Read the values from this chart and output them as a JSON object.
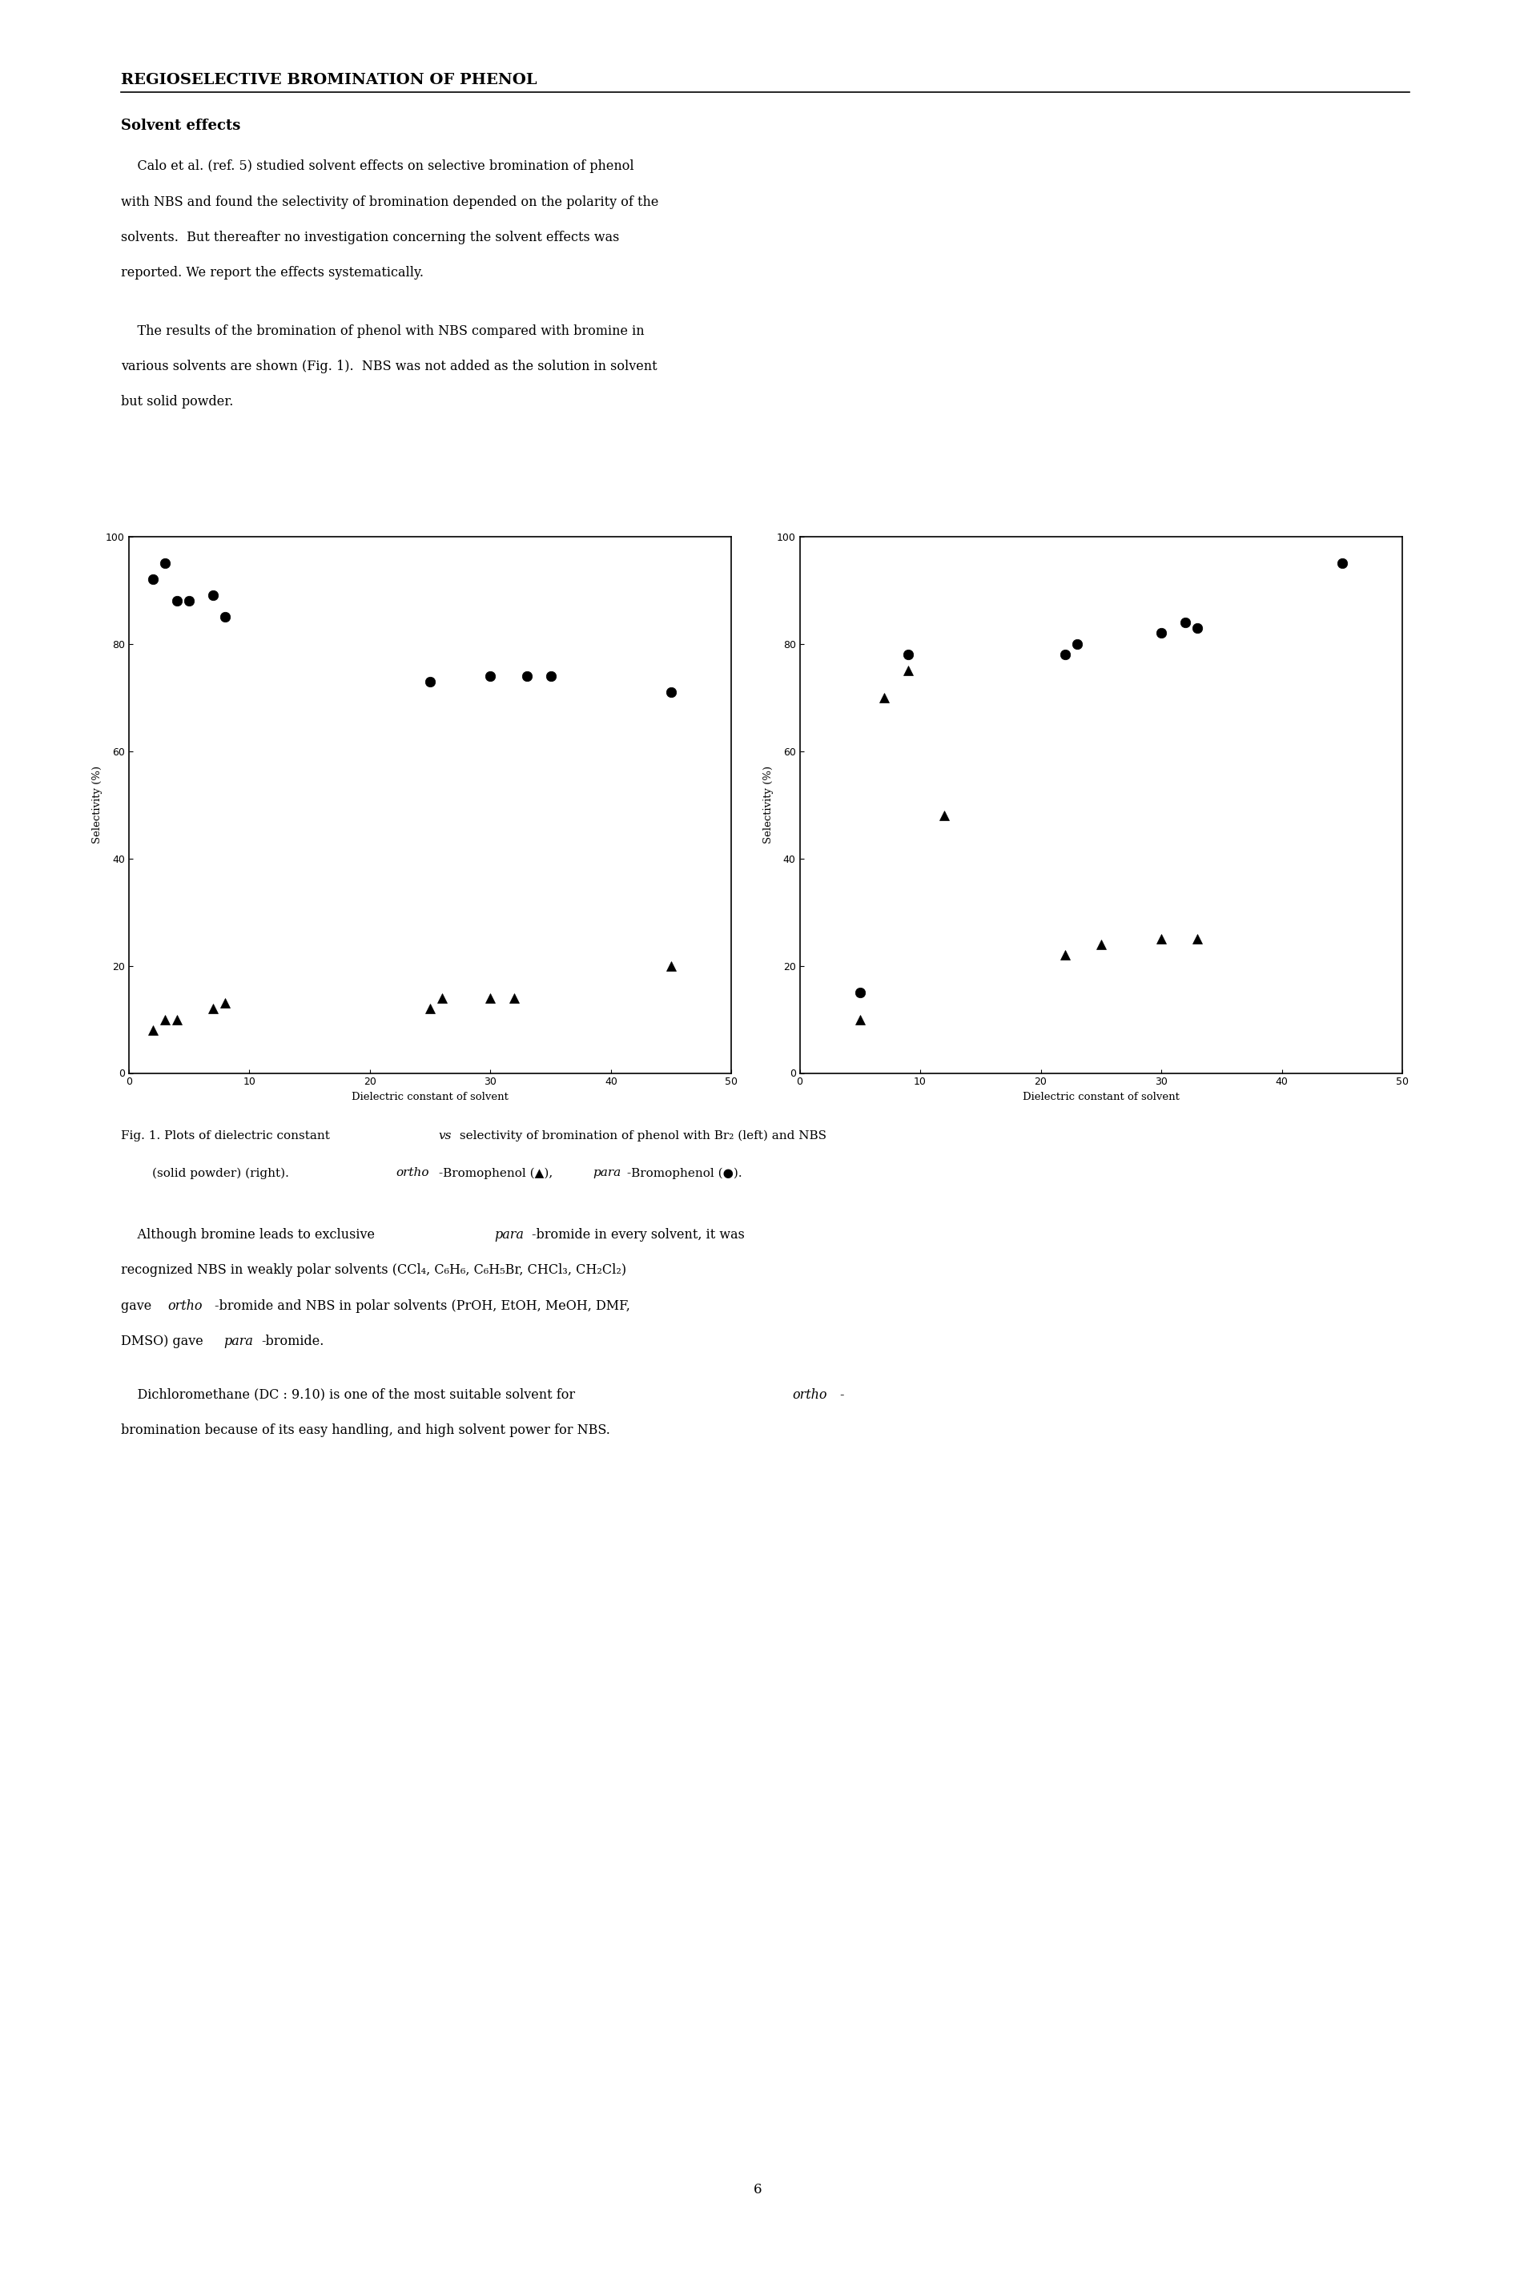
{
  "page_title": "REGIOSELECTIVE BROMINATION OF PHENOL",
  "section_title": "Solvent effects",
  "para1_line1": "    Calo et al. (ref. 5) studied solvent effects on selective bromination of phenol",
  "para1_line2": "with NBS and found the selectivity of bromination depended on the polarity of the",
  "para1_line3": "solvents.  But thereafter no investigation concerning the solvent effects was",
  "para1_line4": "reported. We report the effects systematically.",
  "para2_line1": "    The results of the bromination of phenol with NBS compared with bromine in",
  "para2_line2": "various solvents are shown (Fig. 1).  NBS was not added as the solution in solvent",
  "para2_line3": "but solid powder.",
  "xlabel": "Dielectric constant of solvent",
  "ylabel": "Selectivity (%)",
  "xlim": [
    0,
    50
  ],
  "ylim": [
    0,
    100
  ],
  "left_circles": [
    [
      2,
      92
    ],
    [
      3,
      95
    ],
    [
      4,
      88
    ],
    [
      5,
      88
    ],
    [
      7,
      89
    ],
    [
      8,
      85
    ],
    [
      25,
      73
    ],
    [
      30,
      74
    ],
    [
      33,
      74
    ],
    [
      35,
      74
    ],
    [
      45,
      71
    ]
  ],
  "left_triangles": [
    [
      2,
      8
    ],
    [
      3,
      10
    ],
    [
      4,
      10
    ],
    [
      7,
      12
    ],
    [
      8,
      13
    ],
    [
      25,
      12
    ],
    [
      26,
      14
    ],
    [
      30,
      14
    ],
    [
      32,
      14
    ],
    [
      45,
      20
    ]
  ],
  "right_circles": [
    [
      5,
      15
    ],
    [
      9,
      78
    ],
    [
      22,
      78
    ],
    [
      23,
      80
    ],
    [
      30,
      82
    ],
    [
      32,
      84
    ],
    [
      33,
      83
    ],
    [
      45,
      95
    ]
  ],
  "right_triangles": [
    [
      5,
      10
    ],
    [
      7,
      70
    ],
    [
      9,
      75
    ],
    [
      12,
      48
    ],
    [
      22,
      22
    ],
    [
      25,
      24
    ],
    [
      30,
      25
    ],
    [
      33,
      25
    ]
  ],
  "cap_line1a": "Fig. 1. Plots of dielectric constant ",
  "cap_line1b": "vs",
  "cap_line1c": " selectivity of bromination of phenol with Br₂ (left) and NBS",
  "cap_line2a": "        (solid powder) (right). ",
  "cap_line2b": "ortho",
  "cap_line2c": "-Bromophenol (▲), ",
  "cap_line2d": "para",
  "cap_line2e": "-Bromophenol (●).",
  "p3_line1a": "    Although bromine leads to exclusive ",
  "p3_line1b": "para",
  "p3_line1c": "-bromide in every solvent, it was",
  "p3_line2": "recognized NBS in weakly polar solvents (CCl₄, C₆H₆, C₆H₅Br, CHCl₃, CH₂Cl₂)",
  "p3_line3a": "gave ",
  "p3_line3b": "ortho",
  "p3_line3c": "-bromide and NBS in polar solvents (PrOH, EtOH, MeOH, DMF,",
  "p3_line4a": "DMSO) gave ",
  "p3_line4b": "para",
  "p3_line4c": "-bromide.",
  "p4_line1a": "    Dichloromethane (DC : 9.10) is one of the most suitable solvent for ",
  "p4_line1b": "ortho",
  "p4_line1c": "-",
  "p4_line2": "bromination because of its easy handling, and high solvent power for NBS.",
  "page_number": "6",
  "bg_color": "#ffffff",
  "text_color": "#000000",
  "xticks": [
    0,
    10,
    20,
    30,
    40,
    50
  ],
  "yticks": [
    0,
    20,
    40,
    60,
    80,
    100
  ]
}
